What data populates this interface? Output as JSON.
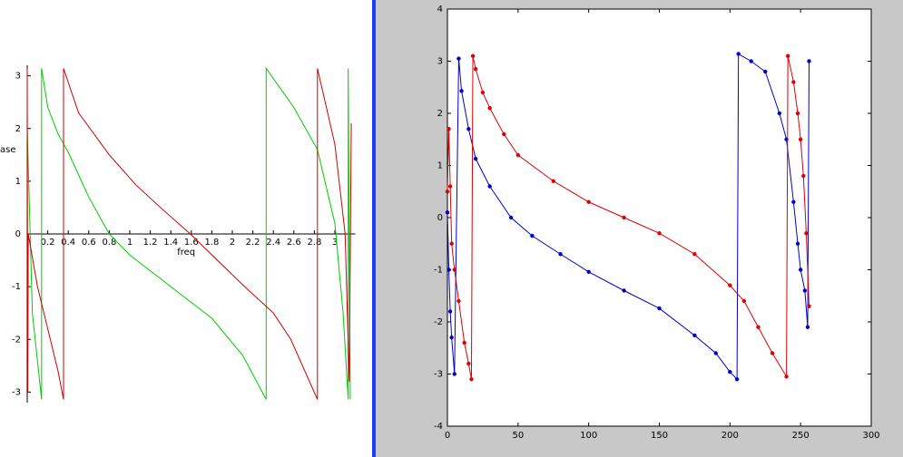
{
  "chart_data": [
    {
      "type": "line",
      "axis_style": "crossing",
      "markers": false,
      "x_label": "freq",
      "y_label": "ase",
      "xlim": [
        0,
        3.2
      ],
      "ylim": [
        -3.2,
        3.2
      ],
      "xticks": [
        0.2,
        0.4,
        0.6,
        0.8,
        1,
        1.2,
        1.4,
        1.6,
        1.8,
        2,
        2.2,
        2.4,
        2.6,
        2.8,
        3
      ],
      "yticks": [
        -3,
        -2,
        -1,
        0,
        1,
        2,
        3
      ],
      "series": [
        {
          "color": "#00cc00",
          "x": [
            0.0,
            0.05,
            0.14,
            0.14,
            0.2,
            0.3,
            0.4,
            0.6,
            0.8,
            1.0,
            1.4,
            1.8,
            2.1,
            2.33,
            2.33,
            2.6,
            2.83,
            3.0,
            3.08,
            3.13,
            3.13,
            3.15
          ],
          "values": [
            2.0,
            -1.5,
            -3.14,
            3.14,
            2.4,
            1.9,
            1.55,
            0.7,
            0.0,
            -0.4,
            -1.0,
            -1.6,
            -2.3,
            -3.14,
            3.14,
            2.4,
            1.6,
            0.2,
            -1.5,
            -3.14,
            3.14,
            -3.14
          ]
        },
        {
          "color": "#cc0000",
          "x": [
            0.0,
            0.005,
            0.01,
            0.1,
            0.2,
            0.3,
            0.354,
            0.354,
            0.5,
            0.8,
            1.06,
            1.3,
            1.59,
            2.12,
            2.4,
            2.57,
            2.83,
            2.83,
            3.0,
            3.1,
            3.14,
            3.16
          ],
          "values": [
            3.14,
            -3.0,
            0.0,
            -1.0,
            -1.8,
            -2.6,
            -3.14,
            3.14,
            2.3,
            1.5,
            0.93,
            0.5,
            0.0,
            -1.0,
            -1.5,
            -2.0,
            -3.14,
            3.14,
            1.7,
            0.0,
            -2.8,
            2.1
          ]
        }
      ]
    },
    {
      "type": "line",
      "axis_style": "box",
      "markers": true,
      "xlim": [
        0,
        300
      ],
      "ylim": [
        -4,
        4
      ],
      "xticks": [
        0,
        50,
        100,
        150,
        200,
        250,
        300
      ],
      "yticks": [
        -4,
        -3,
        -2,
        -1,
        0,
        1,
        2,
        3,
        4
      ],
      "series": [
        {
          "color": "#0000cc",
          "x": [
            0,
            1,
            2,
            3,
            5,
            8,
            10,
            15,
            20,
            30,
            45,
            60,
            80,
            100,
            125,
            150,
            175,
            190,
            200,
            205,
            206,
            215,
            225,
            235,
            240,
            245,
            248,
            250,
            253,
            255,
            256
          ],
          "values": [
            0.1,
            -1.0,
            -1.8,
            -2.3,
            -3.0,
            3.05,
            2.43,
            1.7,
            1.13,
            0.6,
            0.0,
            -0.35,
            -0.7,
            -1.04,
            -1.4,
            -1.74,
            -2.26,
            -2.6,
            -2.96,
            -3.1,
            3.14,
            3.0,
            2.8,
            2.0,
            1.5,
            0.3,
            -0.5,
            -1.0,
            -1.4,
            -2.1,
            3.0
          ]
        },
        {
          "color": "#dd0000",
          "x": [
            0,
            1,
            2,
            3,
            5,
            8,
            12,
            15,
            17,
            18,
            20,
            25,
            30,
            40,
            50,
            75,
            100,
            125,
            150,
            175,
            200,
            210,
            220,
            230,
            240,
            241,
            245,
            248,
            250,
            252,
            254,
            256
          ],
          "values": [
            0.5,
            1.7,
            0.6,
            -0.5,
            -1.0,
            -1.6,
            -2.4,
            -2.8,
            -3.1,
            3.1,
            2.85,
            2.4,
            2.1,
            1.6,
            1.2,
            0.7,
            0.3,
            0.0,
            -0.3,
            -0.7,
            -1.3,
            -1.6,
            -2.1,
            -2.6,
            -3.05,
            3.1,
            2.6,
            2.0,
            1.5,
            0.8,
            -0.3,
            -1.7
          ]
        }
      ]
    }
  ]
}
